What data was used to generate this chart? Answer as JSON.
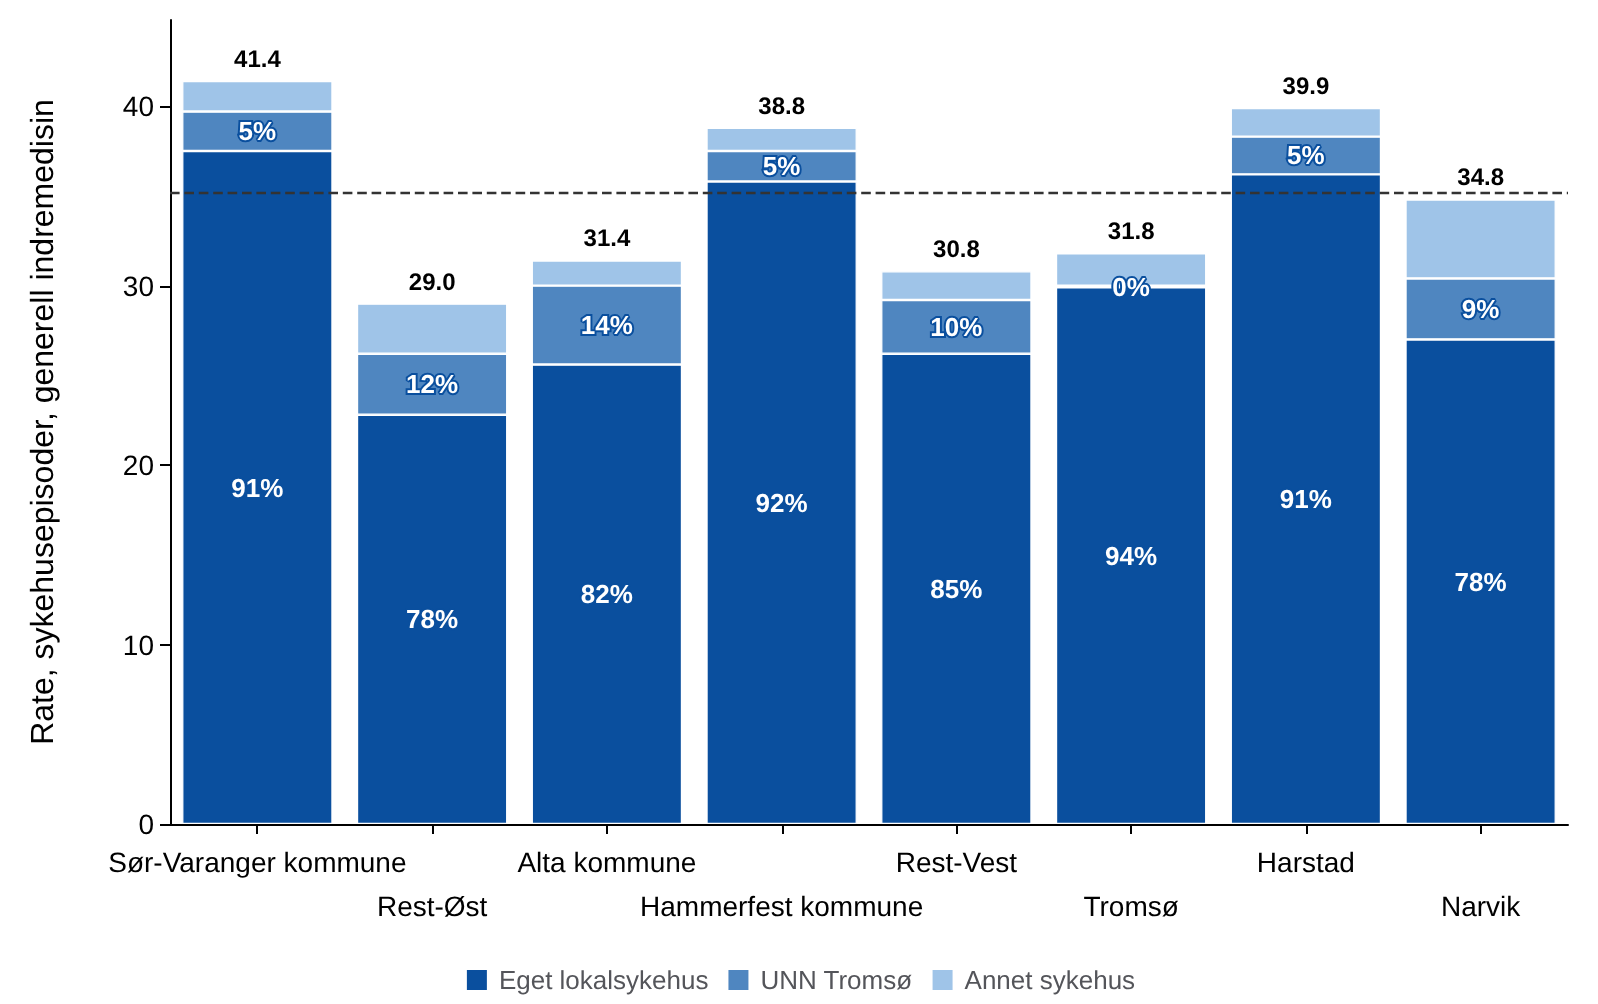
{
  "chart_data": {
    "type": "bar",
    "stacked": true,
    "ylabel": "Rate, sykehusepisoder, generell indremedisin",
    "categories": [
      "Sør-Varanger kommune",
      "Rest-Øst",
      "Alta kommune",
      "Hammerfest kommune",
      "Rest-Vest",
      "Tromsø",
      "Harstad",
      "Narvik"
    ],
    "series": [
      {
        "name": "Eget lokalsykehus",
        "color": "#0a4f9e",
        "values": [
          37.5,
          22.8,
          25.6,
          35.8,
          26.2,
          29.9,
          36.2,
          27.0
        ]
      },
      {
        "name": "UNN Tromsø",
        "color": "#4f86c0",
        "values": [
          2.2,
          3.4,
          4.4,
          1.7,
          3.0,
          0.1,
          2.1,
          3.4
        ]
      },
      {
        "name": "Annet sykehus",
        "color": "#9fc4e8",
        "values": [
          1.7,
          2.8,
          1.4,
          1.3,
          1.6,
          1.8,
          1.6,
          4.4
        ]
      }
    ],
    "annotations": [
      "91%",
      "78%",
      "82%",
      "92%",
      "85%",
      "94%",
      "91%",
      "78%",
      "5%",
      "12%",
      "14%",
      "5%",
      "10%",
      "0%",
      "5%",
      "9%"
    ],
    "totals": [
      "41.4",
      "29.0",
      "31.4",
      "38.8",
      "30.8",
      "31.8",
      "39.9",
      "34.8"
    ],
    "ylim": [
      0,
      44.8
    ],
    "yticks": [
      0,
      10,
      20,
      30,
      40
    ],
    "grid": false,
    "legend": "bottom",
    "ref_lines": [
      {
        "axis": "y",
        "value": 35.2,
        "line_style": "dashed",
        "color": "#333333"
      }
    ]
  }
}
